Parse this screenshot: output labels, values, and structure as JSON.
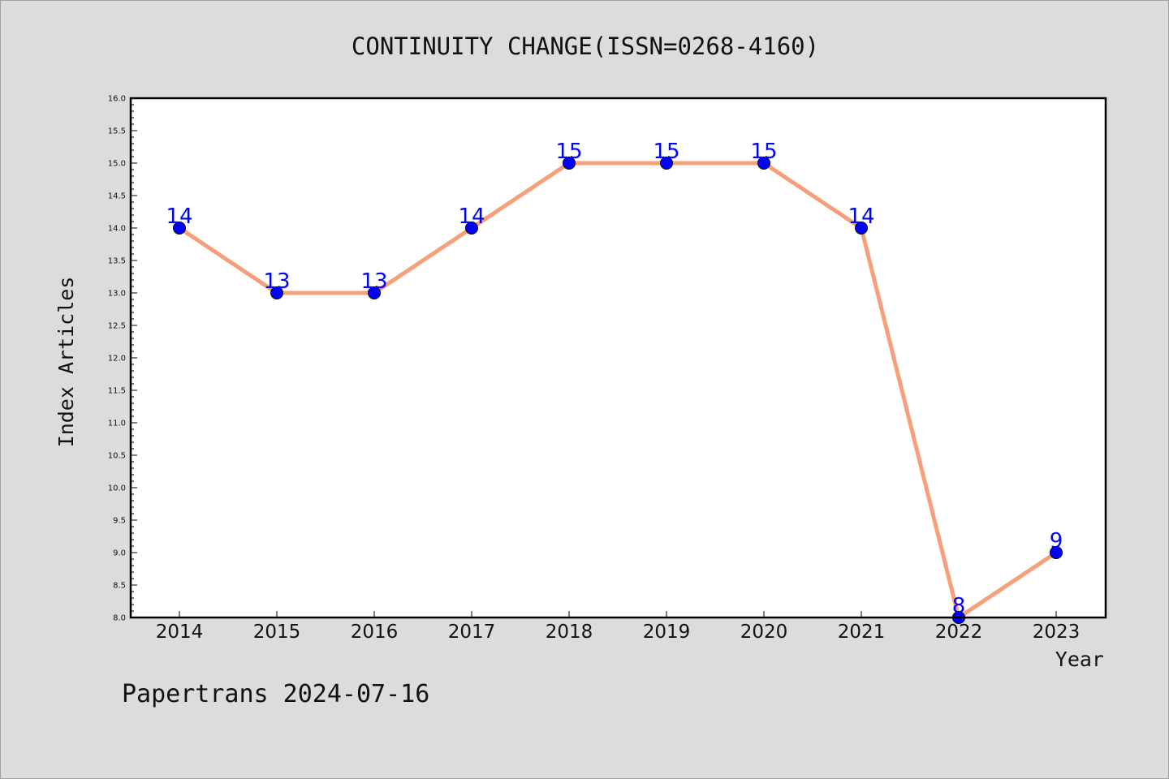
{
  "footer": "Papertrans 2024-07-16",
  "colors": {
    "line": "#f5a07a",
    "marker": "#0000ff",
    "label": "#0000ff",
    "plot_bg": "#ffffff",
    "page_bg": "#dcdcdc"
  },
  "chart_data": {
    "type": "line",
    "title": "CONTINUITY CHANGE(ISSN=0268-4160)",
    "xlabel": "Year",
    "ylabel": "Index Articles",
    "categories": [
      "2014",
      "2015",
      "2016",
      "2017",
      "2018",
      "2019",
      "2020",
      "2021",
      "2022",
      "2023"
    ],
    "series": [
      {
        "values": [
          14,
          13,
          13,
          14,
          15,
          15,
          15,
          14,
          8,
          9
        ]
      }
    ],
    "ylim": [
      8.0,
      16.0
    ],
    "yticks": [
      "8.0",
      "8.5",
      "9.0",
      "9.5",
      "10.0",
      "10.5",
      "11.0",
      "11.5",
      "12.0",
      "12.5",
      "13.0",
      "13.5",
      "14.0",
      "14.5",
      "15.0",
      "15.5",
      "16.0"
    ],
    "grid": false,
    "legend": "none",
    "data_labels": true
  }
}
